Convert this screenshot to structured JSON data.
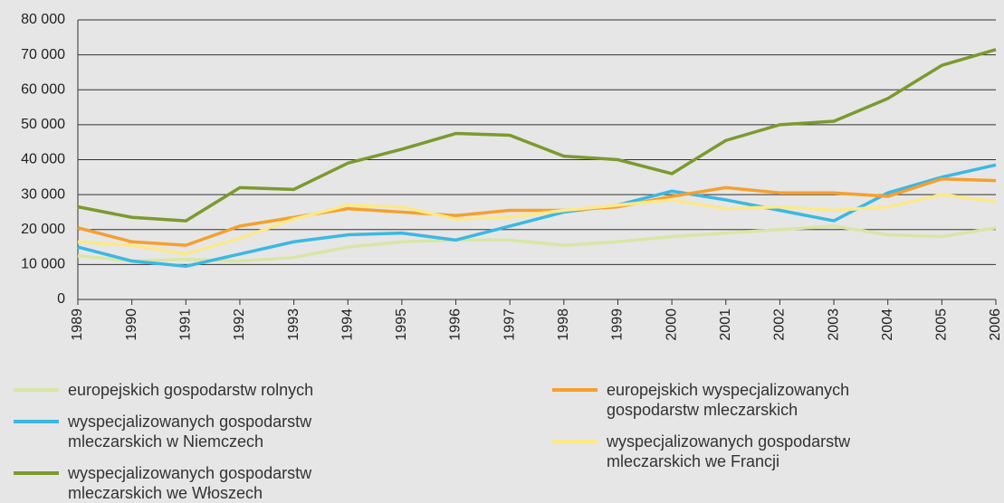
{
  "chart_data": {
    "type": "line",
    "categories": [
      "1989",
      "1990",
      "1991",
      "1992",
      "1993",
      "1994",
      "1995",
      "1996",
      "1997",
      "1998",
      "1999",
      "2000",
      "2001",
      "2002",
      "2003",
      "2004",
      "2005",
      "2006"
    ],
    "series": [
      {
        "name": "europejskich gospodarstw rolnych",
        "color": "#d8e6a6",
        "values": [
          12500,
          11000,
          11500,
          11000,
          12000,
          15000,
          16500,
          17000,
          17000,
          15500,
          16500,
          18000,
          19000,
          20000,
          21000,
          18500,
          18000,
          20500
        ]
      },
      {
        "name": "wyspecjalizowanych gospodarstw mleczarskich w Niemczech",
        "color": "#3bb8e2",
        "values": [
          15000,
          11000,
          9500,
          13000,
          16500,
          18500,
          19000,
          17000,
          21000,
          25000,
          27000,
          31000,
          28500,
          25500,
          22500,
          30500,
          35000,
          38500
        ]
      },
      {
        "name": "wyspecjalizowanych gospodarstw mleczarskich we Włoszech",
        "color": "#7b9a2e",
        "values": [
          26500,
          23500,
          22500,
          32000,
          31500,
          39000,
          43000,
          47500,
          47000,
          41000,
          40000,
          36000,
          45500,
          50000,
          51000,
          57500,
          67000,
          71500
        ]
      },
      {
        "name": "europejskich wyspecjalizowanych gospodarstw mleczarskich",
        "color": "#f5a02e",
        "values": [
          20500,
          16500,
          15500,
          21000,
          23500,
          26000,
          25000,
          24000,
          25500,
          25500,
          26500,
          29500,
          32000,
          30500,
          30500,
          29500,
          34500,
          34000
        ]
      },
      {
        "name": "wyspecjalizowanych gospodarstw mleczarskich we Francji",
        "color": "#fbe98a",
        "values": [
          16500,
          15500,
          13000,
          17500,
          23000,
          27000,
          26500,
          23000,
          23500,
          25500,
          27000,
          28500,
          26000,
          26500,
          25500,
          26500,
          30000,
          28000
        ]
      }
    ],
    "ylim": [
      0,
      80000
    ],
    "yticks": [
      0,
      {
        "value": 10000,
        "label": "10 000"
      },
      {
        "value": 20000,
        "label": "20 000"
      },
      {
        "value": 30000,
        "label": "30 000"
      },
      {
        "value": 40000,
        "label": "40 000"
      },
      {
        "value": 50000,
        "label": "50 000"
      },
      {
        "value": 60000,
        "label": "60 000"
      },
      {
        "value": 70000,
        "label": "70 000"
      },
      {
        "value": 80000,
        "label": "80 000"
      }
    ],
    "grid": true
  }
}
